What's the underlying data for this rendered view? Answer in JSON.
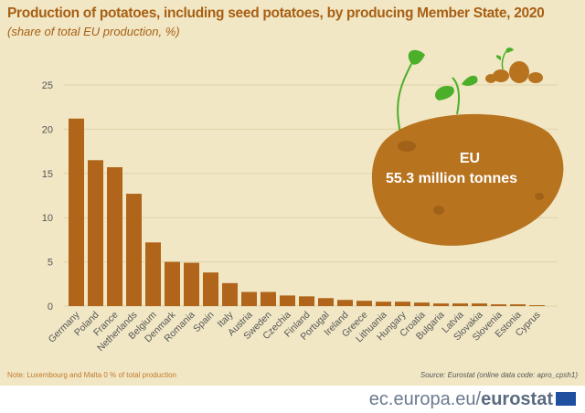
{
  "title": "Production of potatoes, including seed potatoes, by producing Member State, 2020",
  "subtitle": "(share of total EU production, %)",
  "note": "Note: Luxembourg and Malta 0 % of total production",
  "source": "Source: Eurostat (online data code: apro_cpsh1)",
  "footer": {
    "domain": "ec.europa.eu/",
    "brand": "eurostat"
  },
  "callout": {
    "label": "EU",
    "value": "55.3 million tonnes"
  },
  "colors": {
    "bar": "#b0651a",
    "background": "#f1e7c5",
    "potato": "#b8731f",
    "leaf": "#4caf2a"
  },
  "chart_data": {
    "type": "bar",
    "categories": [
      "Germany",
      "Poland",
      "France",
      "Netherlands",
      "Belgium",
      "Denmark",
      "Romania",
      "Spain",
      "Italy",
      "Austria",
      "Sweden",
      "Czechia",
      "Finland",
      "Portugal",
      "Ireland",
      "Greece",
      "Lithuania",
      "Hungary",
      "Croatia",
      "Bulgaria",
      "Latvia",
      "Slovakia",
      "Slovenia",
      "Estonia",
      "Cyprus"
    ],
    "values": [
      21.2,
      16.5,
      15.7,
      12.7,
      7.2,
      5.0,
      4.9,
      3.8,
      2.6,
      1.6,
      1.6,
      1.2,
      1.1,
      0.9,
      0.7,
      0.6,
      0.5,
      0.5,
      0.4,
      0.3,
      0.3,
      0.3,
      0.2,
      0.2,
      0.1
    ],
    "ylim": [
      0,
      25
    ],
    "yticks": [
      0,
      5,
      10,
      15,
      20,
      25
    ],
    "grid": true
  }
}
